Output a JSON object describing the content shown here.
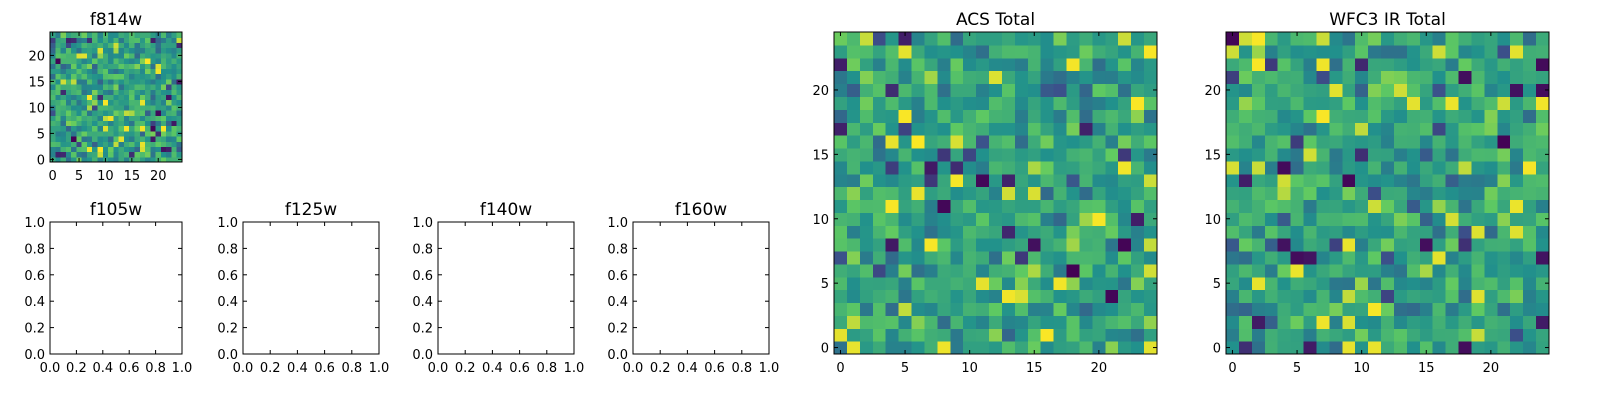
{
  "figure": {
    "colormap": [
      "#440154",
      "#3b528b",
      "#21918c",
      "#5ec962",
      "#fde725"
    ]
  },
  "chart_data": [
    {
      "type": "heatmap",
      "title": "f814w",
      "grid_size": 25,
      "xlim": [
        -0.5,
        24.5
      ],
      "ylim": [
        -0.5,
        24.5
      ],
      "xticks": [
        0,
        5,
        10,
        15,
        20
      ],
      "yticks": [
        0,
        5,
        10,
        15,
        20
      ],
      "grid": false,
      "colormap": "viridis",
      "seed": 11,
      "values_note": "25x25 random noise image"
    },
    {
      "type": "scatter",
      "title": "f105w",
      "xlim": [
        0.0,
        1.0
      ],
      "ylim": [
        0.0,
        1.0
      ],
      "xticks": [
        "0.0",
        "0.2",
        "0.4",
        "0.6",
        "0.8",
        "1.0"
      ],
      "yticks": [
        "0.0",
        "0.2",
        "0.4",
        "0.6",
        "0.8",
        "1.0"
      ],
      "values": []
    },
    {
      "type": "scatter",
      "title": "f125w",
      "xlim": [
        0.0,
        1.0
      ],
      "ylim": [
        0.0,
        1.0
      ],
      "xticks": [
        "0.0",
        "0.2",
        "0.4",
        "0.6",
        "0.8",
        "1.0"
      ],
      "yticks": [
        "0.0",
        "0.2",
        "0.4",
        "0.6",
        "0.8",
        "1.0"
      ],
      "values": []
    },
    {
      "type": "scatter",
      "title": "f140w",
      "xlim": [
        0.0,
        1.0
      ],
      "ylim": [
        0.0,
        1.0
      ],
      "xticks": [
        "0.0",
        "0.2",
        "0.4",
        "0.6",
        "0.8",
        "1.0"
      ],
      "yticks": [
        "0.0",
        "0.2",
        "0.4",
        "0.6",
        "0.8",
        "1.0"
      ],
      "values": []
    },
    {
      "type": "scatter",
      "title": "f160w",
      "xlim": [
        0.0,
        1.0
      ],
      "ylim": [
        0.0,
        1.0
      ],
      "xticks": [
        "0.0",
        "0.2",
        "0.4",
        "0.6",
        "0.8",
        "1.0"
      ],
      "yticks": [
        "0.0",
        "0.2",
        "0.4",
        "0.6",
        "0.8",
        "1.0"
      ],
      "values": []
    },
    {
      "type": "heatmap",
      "title": "ACS Total",
      "grid_size": 25,
      "xlim": [
        -0.5,
        24.5
      ],
      "ylim": [
        -0.5,
        24.5
      ],
      "xticks": [
        0,
        5,
        10,
        15,
        20
      ],
      "yticks": [
        0,
        5,
        10,
        15,
        20
      ],
      "grid": false,
      "colormap": "viridis",
      "seed": 29,
      "values_note": "25x25 random noise image"
    },
    {
      "type": "heatmap",
      "title": "WFC3 IR Total",
      "grid_size": 25,
      "xlim": [
        -0.5,
        24.5
      ],
      "ylim": [
        -0.5,
        24.5
      ],
      "xticks": [
        0,
        5,
        10,
        15,
        20
      ],
      "yticks": [
        0,
        5,
        10,
        15,
        20
      ],
      "grid": false,
      "colormap": "viridis",
      "seed": 47,
      "values_note": "25x25 random noise image"
    }
  ]
}
